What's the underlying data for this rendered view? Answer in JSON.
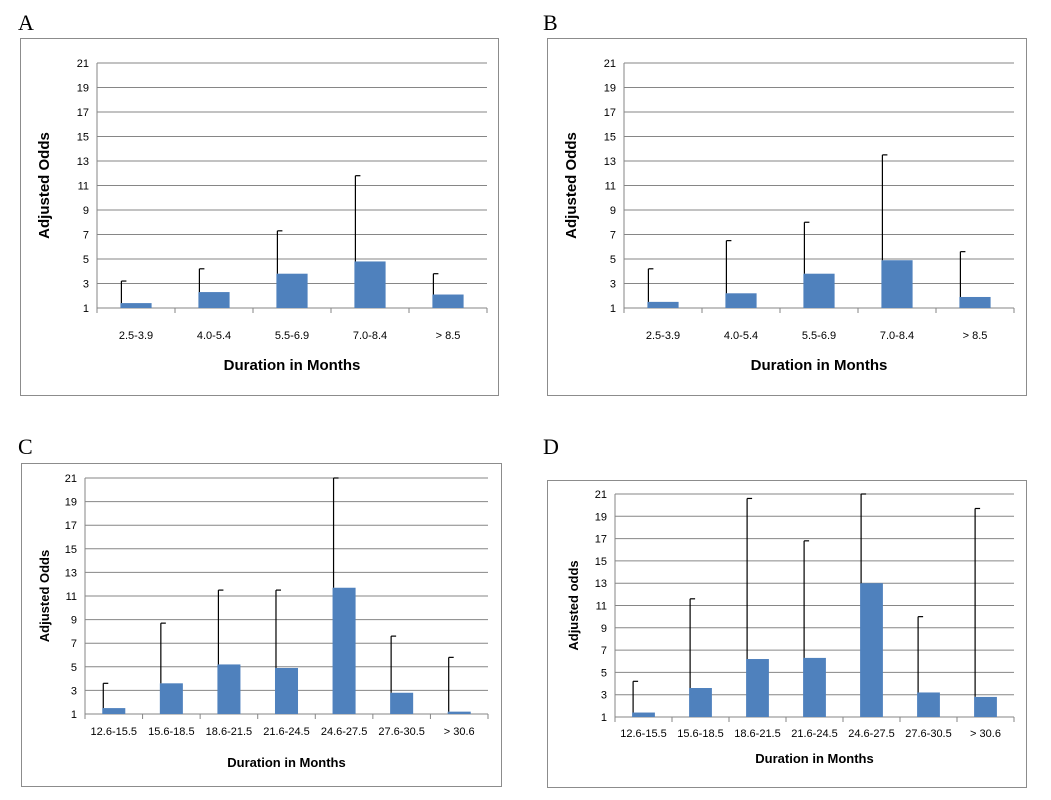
{
  "chart_data": [
    {
      "panel": "A",
      "type": "bar",
      "ylabel": "Adjusted Odds",
      "xlabel": "Duration in Months",
      "ylim": [
        1,
        21
      ],
      "yticks": [
        1,
        3,
        5,
        7,
        9,
        11,
        13,
        15,
        17,
        19,
        21
      ],
      "grid": true,
      "bar_color": "#4f81bd",
      "categories": [
        "2.5-3.9",
        "4.0-5.4",
        "5.5-6.9",
        "7.0-8.4",
        "> 8.5"
      ],
      "values": [
        1.4,
        2.3,
        3.8,
        4.8,
        2.1
      ],
      "error_upper": [
        3.2,
        4.2,
        7.3,
        11.8,
        3.8
      ]
    },
    {
      "panel": "B",
      "type": "bar",
      "ylabel": "Adjusted Odds",
      "xlabel": "Duration in Months",
      "ylim": [
        1,
        21
      ],
      "yticks": [
        1,
        3,
        5,
        7,
        9,
        11,
        13,
        15,
        17,
        19,
        21
      ],
      "grid": true,
      "bar_color": "#4f81bd",
      "categories": [
        "2.5-3.9",
        "4.0-5.4",
        "5.5-6.9",
        "7.0-8.4",
        "> 8.5"
      ],
      "values": [
        1.5,
        2.2,
        3.8,
        4.9,
        1.9
      ],
      "error_upper": [
        4.2,
        6.5,
        8.0,
        13.5,
        5.6
      ]
    },
    {
      "panel": "C",
      "type": "bar",
      "ylabel": "Adjusted Odds",
      "xlabel": "Duration in Months",
      "ylim": [
        1,
        21
      ],
      "yticks": [
        1,
        3,
        5,
        7,
        9,
        11,
        13,
        15,
        17,
        19,
        21
      ],
      "grid": true,
      "bar_color": "#4f81bd",
      "categories": [
        "12.6-15.5",
        "15.6-18.5",
        "18.6-21.5",
        "21.6-24.5",
        "24.6-27.5",
        "27.6-30.5",
        "> 30.6"
      ],
      "values": [
        1.5,
        3.6,
        5.2,
        4.9,
        11.7,
        2.8,
        1.2
      ],
      "error_upper": [
        3.6,
        8.7,
        11.5,
        11.5,
        21.0,
        7.6,
        5.8
      ]
    },
    {
      "panel": "D",
      "type": "bar",
      "ylabel": "Adjusted odds",
      "xlabel": "Duration in Months",
      "ylim": [
        1,
        21
      ],
      "yticks": [
        1,
        3,
        5,
        7,
        9,
        11,
        13,
        15,
        17,
        19,
        21
      ],
      "grid": true,
      "bar_color": "#4f81bd",
      "categories": [
        "12.6-15.5",
        "15.6-18.5",
        "18.6-21.5",
        "21.6-24.5",
        "24.6-27.5",
        "27.6-30.5",
        "> 30.6"
      ],
      "values": [
        1.4,
        3.6,
        6.2,
        6.3,
        13.0,
        3.2,
        2.8
      ],
      "error_upper": [
        4.2,
        11.6,
        20.6,
        16.8,
        21.0,
        10.0,
        19.7
      ]
    }
  ]
}
